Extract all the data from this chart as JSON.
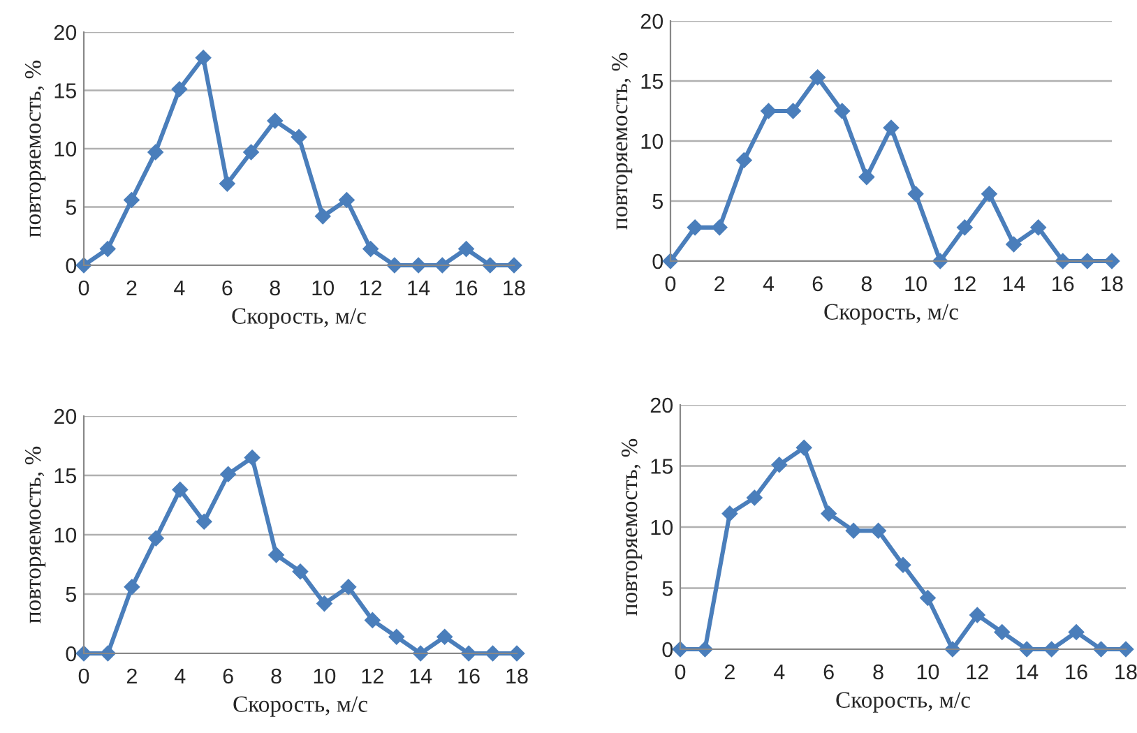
{
  "chart_data": [
    {
      "type": "line",
      "xlabel": "Скорость, м/с",
      "ylabel": "повторяемость, %",
      "x": [
        0,
        1,
        2,
        3,
        4,
        5,
        6,
        7,
        8,
        9,
        10,
        11,
        12,
        13,
        14,
        15,
        16,
        17,
        18
      ],
      "xlim": [
        0,
        18
      ],
      "xticks": [
        0,
        2,
        4,
        6,
        8,
        10,
        12,
        14,
        16,
        18
      ],
      "ylim": [
        0,
        20
      ],
      "yticks": [
        0,
        5,
        10,
        15,
        20
      ],
      "grid": "y",
      "marker": "diamond",
      "line_style": "solid",
      "series": [
        {
          "color": "#4a7ebb",
          "values": [
            0,
            1.4,
            5.6,
            9.7,
            15.1,
            17.8,
            7,
            9.7,
            12.4,
            11,
            4.2,
            5.6,
            1.4,
            0,
            0,
            0,
            1.4,
            0,
            0
          ]
        }
      ]
    },
    {
      "type": "line",
      "xlabel": "Скорость, м/с",
      "ylabel": "повторяемость, %",
      "x": [
        0,
        1,
        2,
        3,
        4,
        5,
        6,
        7,
        8,
        9,
        10,
        11,
        12,
        13,
        14,
        15,
        16,
        17,
        18
      ],
      "xlim": [
        0,
        18
      ],
      "xticks": [
        0,
        2,
        4,
        6,
        8,
        10,
        12,
        14,
        16,
        18
      ],
      "ylim": [
        0,
        20
      ],
      "yticks": [
        0,
        5,
        10,
        15,
        20
      ],
      "grid": "y",
      "marker": "diamond",
      "line_style": "solid",
      "series": [
        {
          "color": "#4a7ebb",
          "values": [
            0,
            2.8,
            2.8,
            8.4,
            12.5,
            12.5,
            15.3,
            12.5,
            7,
            11.1,
            5.6,
            0,
            2.8,
            5.6,
            1.4,
            2.8,
            0,
            0,
            0
          ]
        }
      ]
    },
    {
      "type": "line",
      "xlabel": "Скорость, м/с",
      "ylabel": "повторяемость, %",
      "x": [
        0,
        1,
        2,
        3,
        4,
        5,
        6,
        7,
        8,
        9,
        10,
        11,
        12,
        13,
        14,
        15,
        16,
        17,
        18
      ],
      "xlim": [
        0,
        18
      ],
      "xticks": [
        0,
        2,
        4,
        6,
        8,
        10,
        12,
        14,
        16,
        18
      ],
      "ylim": [
        0,
        20
      ],
      "yticks": [
        0,
        5,
        10,
        15,
        20
      ],
      "grid": "y",
      "marker": "diamond",
      "line_style": "solid",
      "series": [
        {
          "color": "#4a7ebb",
          "values": [
            0,
            0,
            5.6,
            9.7,
            13.8,
            11.1,
            15.1,
            16.5,
            8.3,
            6.9,
            4.2,
            5.6,
            2.8,
            1.4,
            0,
            1.4,
            0,
            0,
            0
          ]
        }
      ]
    },
    {
      "type": "line",
      "xlabel": "Скорость, м/с",
      "ylabel": "повторяемость, %",
      "x": [
        0,
        1,
        2,
        3,
        4,
        5,
        6,
        7,
        8,
        9,
        10,
        11,
        12,
        13,
        14,
        15,
        16,
        17,
        18
      ],
      "xlim": [
        0,
        18
      ],
      "xticks": [
        0,
        2,
        4,
        6,
        8,
        10,
        12,
        14,
        16,
        18
      ],
      "ylim": [
        0,
        20
      ],
      "yticks": [
        0,
        5,
        10,
        15,
        20
      ],
      "grid": "y",
      "marker": "diamond",
      "line_style": "solid",
      "series": [
        {
          "color": "#4a7ebb",
          "values": [
            0,
            0,
            11.1,
            12.4,
            15.1,
            16.5,
            11.1,
            9.7,
            9.7,
            6.9,
            4.2,
            0,
            2.8,
            1.4,
            0,
            0,
            1.4,
            0,
            0
          ]
        }
      ]
    }
  ]
}
